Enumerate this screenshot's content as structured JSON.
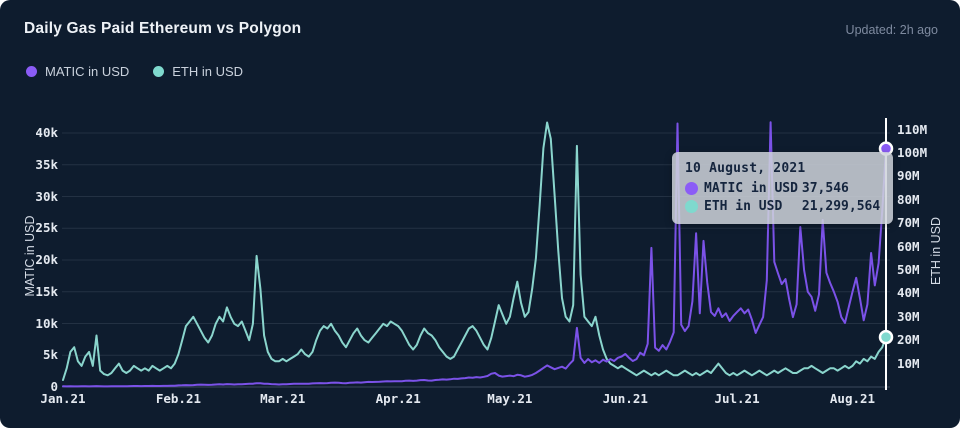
{
  "header": {
    "title": "Daily Gas Paid Ethereum vs Polygon",
    "updated": "Updated: 2h ago"
  },
  "legend": {
    "items": [
      {
        "label": "MATIC in USD",
        "color": "#8b5cf6"
      },
      {
        "label": "ETH in USD",
        "color": "#7fd9ce"
      }
    ]
  },
  "tooltip": {
    "date": "10 August, 2021",
    "rows": [
      {
        "label": "MATIC in USD",
        "value": "37,546",
        "color": "#8b5cf6"
      },
      {
        "label": "ETH in USD",
        "value": "21,299,564",
        "color": "#7fd9ce"
      }
    ]
  },
  "colors": {
    "background": "#0e1c2e",
    "matic_line": "#7b52e8",
    "eth_line": "#8ad5cd",
    "grid": "rgba(160,175,200,0.14)",
    "crosshair": "#ffffff",
    "tooltip_bg": "rgba(207,211,219,0.85)"
  },
  "chart_data": {
    "type": "line",
    "title": "Daily Gas Paid Ethereum vs Polygon",
    "x": {
      "start": "2021-01-01",
      "end": "2021-08-10",
      "tick_indices": [
        0,
        31,
        59,
        90,
        120,
        151,
        181,
        212
      ],
      "tick_labels": [
        "Jan.21",
        "Feb.21",
        "Mar.21",
        "Apr.21",
        "May.21",
        "Jun.21",
        "Jul.21",
        "Aug.21"
      ]
    },
    "left_axis": {
      "label": "MATIC in USD",
      "tick_labels": [
        "0",
        "5k",
        "10k",
        "15k",
        "20k",
        "25k",
        "30k",
        "35k",
        "40k"
      ],
      "tick_values_k": [
        0,
        5,
        10,
        15,
        20,
        25,
        30,
        35,
        40
      ],
      "range_k": [
        0,
        42.5
      ],
      "grid": true
    },
    "right_axis": {
      "label": "ETH in USD",
      "tick_labels": [
        "10M",
        "20M",
        "30M",
        "40M",
        "50M",
        "60M",
        "70M",
        "80M",
        "90M",
        "100M",
        "110M"
      ],
      "tick_values_m": [
        10,
        20,
        30,
        40,
        50,
        60,
        70,
        80,
        90,
        100,
        110
      ],
      "range_m": [
        0,
        114
      ],
      "grid": false
    },
    "highlight": {
      "index": 221,
      "date": "10 August, 2021",
      "matic_usd": 37546,
      "eth_usd": 21299564
    },
    "series": [
      {
        "name": "MATIC in USD",
        "axis": "left",
        "unit": "thousand USD per day (estimated from chart)",
        "color": "#7b52e8",
        "dot_color": "#8b5cf6",
        "values": [
          0.12,
          0.1,
          0.11,
          0.1,
          0.1,
          0.12,
          0.11,
          0.1,
          0.13,
          0.14,
          0.12,
          0.1,
          0.1,
          0.11,
          0.12,
          0.13,
          0.12,
          0.11,
          0.14,
          0.16,
          0.15,
          0.14,
          0.15,
          0.16,
          0.17,
          0.16,
          0.15,
          0.17,
          0.18,
          0.2,
          0.21,
          0.25,
          0.27,
          0.3,
          0.28,
          0.3,
          0.35,
          0.38,
          0.36,
          0.33,
          0.35,
          0.4,
          0.42,
          0.4,
          0.45,
          0.42,
          0.4,
          0.42,
          0.44,
          0.48,
          0.5,
          0.52,
          0.6,
          0.58,
          0.52,
          0.5,
          0.45,
          0.42,
          0.4,
          0.42,
          0.44,
          0.48,
          0.5,
          0.5,
          0.52,
          0.5,
          0.52,
          0.56,
          0.6,
          0.62,
          0.6,
          0.62,
          0.68,
          0.7,
          0.66,
          0.62,
          0.6,
          0.66,
          0.7,
          0.72,
          0.7,
          0.76,
          0.8,
          0.78,
          0.8,
          0.82,
          0.86,
          0.9,
          0.88,
          0.92,
          0.9,
          0.92,
          0.98,
          1.0,
          0.96,
          1.0,
          1.08,
          1.1,
          1.02,
          1.0,
          1.1,
          1.14,
          1.2,
          1.16,
          1.22,
          1.3,
          1.28,
          1.36,
          1.4,
          1.5,
          1.46,
          1.56,
          1.5,
          1.6,
          1.74,
          2.1,
          2.2,
          1.8,
          1.64,
          1.72,
          1.8,
          1.7,
          1.92,
          1.84,
          1.62,
          1.74,
          1.9,
          2.2,
          2.6,
          3.0,
          3.4,
          3.1,
          2.8,
          3.0,
          3.2,
          2.9,
          3.6,
          4.2,
          9.3,
          4.6,
          3.8,
          4.4,
          3.9,
          4.2,
          3.8,
          4.3,
          4.0,
          4.4,
          4.1,
          4.6,
          4.8,
          5.2,
          4.6,
          4.1,
          4.4,
          5.4,
          5.0,
          6.8,
          21.9,
          6.2,
          5.7,
          6.6,
          5.9,
          7.1,
          8.6,
          41.5,
          9.8,
          8.8,
          9.6,
          13.5,
          24.2,
          11.6,
          23.0,
          16.5,
          11.8,
          11.2,
          12.4,
          11.0,
          11.6,
          10.4,
          11.2,
          11.8,
          12.4,
          11.6,
          12.2,
          10.6,
          8.5,
          9.8,
          11.0,
          16.8,
          41.7,
          19.7,
          17.9,
          16.2,
          17.0,
          13.8,
          11.0,
          13.0,
          25.2,
          18.4,
          15.0,
          14.2,
          12.0,
          14.6,
          26.3,
          18.0,
          16.4,
          15.0,
          13.4,
          11.0,
          10.1,
          12.6,
          15.0,
          17.2,
          14.0,
          10.5,
          13.0,
          21.1,
          16.0,
          19.5,
          27.9,
          37.546
        ]
      },
      {
        "name": "ETH in USD",
        "axis": "right",
        "unit": "million USD per day (estimated from chart)",
        "color": "#8ad5cd",
        "dot_color": "#7fd9ce",
        "values": [
          3,
          8,
          15,
          17,
          11,
          9,
          13,
          15,
          9,
          22,
          7,
          5.5,
          5,
          6,
          8,
          10,
          7,
          6,
          7,
          9,
          8,
          7,
          8,
          7,
          9,
          8,
          7,
          8,
          9,
          8,
          10,
          14,
          20,
          26,
          28,
          30,
          27,
          24,
          21,
          19,
          22,
          27,
          30,
          28,
          34,
          30,
          27,
          26,
          28,
          24,
          20,
          27,
          56,
          42,
          22,
          15,
          12,
          11,
          11,
          12,
          11,
          12,
          13,
          14,
          16,
          14,
          13,
          15,
          20,
          24,
          26,
          25,
          27,
          24,
          22,
          19,
          17,
          20,
          23,
          25,
          22,
          20,
          19,
          21,
          23,
          25,
          27,
          26,
          28,
          27,
          26,
          24,
          21,
          18,
          16,
          18,
          22,
          25,
          23,
          22,
          20,
          17,
          15,
          13,
          12,
          13,
          16,
          19,
          22,
          25,
          26,
          24,
          21,
          18,
          16,
          21,
          28,
          35,
          31,
          27,
          30,
          38,
          45,
          36,
          30,
          32,
          42,
          55,
          78,
          102,
          113,
          106,
          82,
          58,
          38,
          30,
          28,
          35,
          103,
          48,
          30,
          28,
          26,
          30,
          22,
          16,
          12,
          10,
          9,
          8,
          9,
          8,
          7,
          6,
          5,
          6,
          7,
          6,
          5,
          6,
          5,
          6,
          7,
          6,
          5,
          5,
          6,
          7,
          6,
          5,
          6,
          5,
          6,
          7,
          6,
          8,
          10,
          8,
          6,
          5,
          6,
          5,
          6,
          7,
          6,
          5,
          6,
          7,
          6,
          5,
          6,
          7,
          6,
          7,
          8,
          7,
          6,
          6,
          7,
          8,
          8,
          9,
          8,
          7,
          6,
          7,
          8,
          8,
          7,
          8,
          9,
          8,
          9,
          11,
          10,
          12,
          11,
          13,
          12,
          15,
          17,
          21.3
        ]
      }
    ],
    "grid": {
      "horizontal": true,
      "vertical": false
    },
    "legend_position": "top-left"
  }
}
